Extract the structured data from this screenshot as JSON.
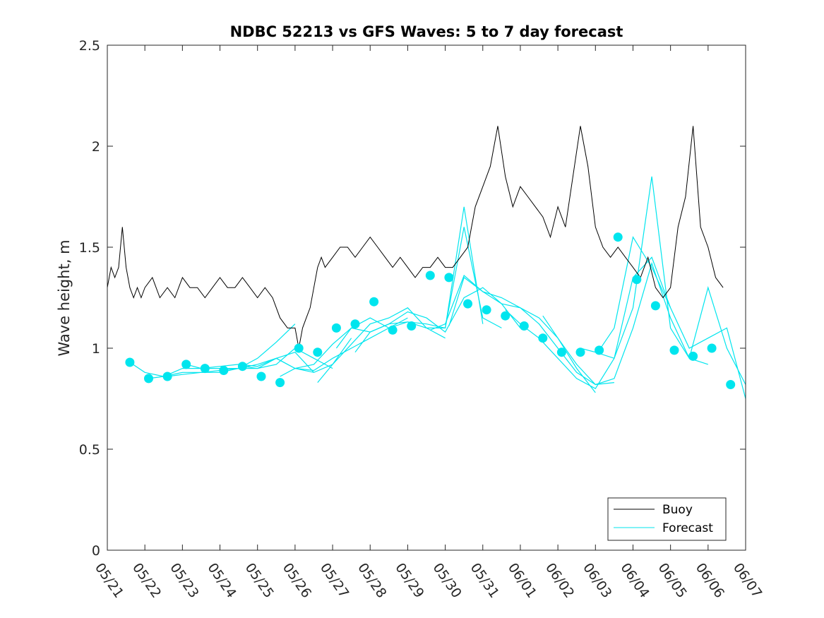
{
  "chart_data": {
    "type": "line",
    "title": "NDBC 52213 vs GFS Waves: 5 to 7 day forecast",
    "ylabel": "Wave height, m",
    "xlabel": "",
    "ylim": [
      0,
      2.5
    ],
    "yticks": [
      "0",
      "0.5",
      "1",
      "1.5",
      "2",
      "2.5"
    ],
    "xlim_days": [
      0,
      17
    ],
    "xticks": [
      "05/21",
      "05/22",
      "05/23",
      "05/24",
      "05/25",
      "05/26",
      "05/27",
      "05/28",
      "05/29",
      "05/30",
      "05/31",
      "06/01",
      "06/02",
      "06/03",
      "06/04",
      "06/05",
      "06/06",
      "06/07"
    ],
    "grid": false,
    "legend": {
      "position": "bottom-right",
      "entries": [
        "Buoy",
        "Forecast"
      ]
    },
    "colors": {
      "buoy": "#000000",
      "forecast": "#00e5ee",
      "axis": "#262626"
    },
    "buoy": {
      "name": "Buoy",
      "x": [
        0.0,
        0.1,
        0.2,
        0.3,
        0.4,
        0.5,
        0.6,
        0.7,
        0.8,
        0.9,
        1.0,
        1.2,
        1.4,
        1.6,
        1.8,
        2.0,
        2.2,
        2.4,
        2.6,
        2.8,
        3.0,
        3.2,
        3.4,
        3.6,
        3.8,
        4.0,
        4.2,
        4.4,
        4.6,
        4.8,
        5.0,
        5.1,
        5.2,
        5.3,
        5.4,
        5.5,
        5.6,
        5.7,
        5.8,
        6.0,
        6.2,
        6.4,
        6.6,
        6.8,
        7.0,
        7.2,
        7.4,
        7.6,
        7.8,
        8.0,
        8.2,
        8.4,
        8.6,
        8.8,
        9.0,
        9.2,
        9.4,
        9.6,
        9.8,
        10.0,
        10.2,
        10.4,
        10.6,
        10.8,
        11.0,
        11.2,
        11.4,
        11.6,
        11.8,
        12.0,
        12.2,
        12.4,
        12.6,
        12.8,
        13.0,
        13.2,
        13.4,
        13.6,
        13.8,
        14.0,
        14.2,
        14.4,
        14.6,
        14.8,
        15.0,
        15.2,
        15.4,
        15.6,
        15.8,
        16.0,
        16.2,
        16.4
      ],
      "y": [
        1.3,
        1.4,
        1.35,
        1.4,
        1.6,
        1.4,
        1.3,
        1.25,
        1.3,
        1.25,
        1.3,
        1.35,
        1.25,
        1.3,
        1.25,
        1.35,
        1.3,
        1.3,
        1.25,
        1.3,
        1.35,
        1.3,
        1.3,
        1.35,
        1.3,
        1.25,
        1.3,
        1.25,
        1.15,
        1.1,
        1.1,
        1.0,
        1.1,
        1.15,
        1.2,
        1.3,
        1.4,
        1.45,
        1.4,
        1.45,
        1.5,
        1.5,
        1.45,
        1.5,
        1.55,
        1.5,
        1.45,
        1.4,
        1.45,
        1.4,
        1.35,
        1.4,
        1.4,
        1.45,
        1.4,
        1.4,
        1.45,
        1.5,
        1.7,
        1.8,
        1.9,
        2.1,
        1.85,
        1.7,
        1.8,
        1.75,
        1.7,
        1.65,
        1.55,
        1.7,
        1.6,
        1.85,
        2.1,
        1.9,
        1.6,
        1.5,
        1.45,
        1.5,
        1.45,
        1.4,
        1.35,
        1.45,
        1.3,
        1.25,
        1.3,
        1.6,
        1.75,
        2.1,
        1.6,
        1.5,
        1.35,
        1.3
      ]
    },
    "forecast_runs": [
      {
        "x": [
          0.6,
          1.0,
          1.5,
          2.0,
          2.5,
          3.0,
          3.5,
          4.0,
          4.5,
          5.0
        ],
        "y": [
          0.93,
          0.88,
          0.86,
          0.88,
          0.88,
          0.89,
          0.9,
          0.95,
          1.03,
          1.12
        ]
      },
      {
        "x": [
          1.1,
          1.5,
          2.0,
          2.5,
          3.0,
          3.5,
          4.0,
          4.5,
          5.0,
          5.5
        ],
        "y": [
          0.85,
          0.86,
          0.9,
          0.9,
          0.91,
          0.92,
          0.91,
          0.95,
          0.98,
          0.88
        ]
      },
      {
        "x": [
          1.6,
          2.0,
          2.5,
          3.0,
          3.5,
          4.0,
          4.5,
          5.0,
          5.5,
          6.0
        ],
        "y": [
          0.86,
          0.87,
          0.88,
          0.88,
          0.9,
          0.9,
          0.92,
          1.0,
          0.95,
          0.9
        ]
      },
      {
        "x": [
          2.1,
          2.5,
          3.0,
          3.5,
          4.0,
          4.5,
          5.0,
          5.5,
          6.0,
          6.5
        ],
        "y": [
          0.92,
          0.9,
          0.9,
          0.9,
          0.92,
          0.95,
          0.9,
          0.88,
          0.92,
          1.05
        ]
      },
      {
        "x": [
          3.6,
          4.0,
          4.5,
          5.0,
          5.5,
          6.0,
          6.5,
          7.0,
          7.5,
          8.0
        ],
        "y": [
          0.91,
          0.9,
          0.95,
          0.9,
          0.89,
          0.95,
          1.0,
          1.05,
          1.1,
          1.15
        ]
      },
      {
        "x": [
          4.6,
          5.0,
          5.5,
          6.0,
          6.5,
          7.0,
          7.5,
          8.0,
          8.5,
          9.0
        ],
        "y": [
          0.86,
          0.9,
          0.92,
          1.02,
          1.1,
          1.08,
          1.12,
          1.13,
          1.1,
          1.05
        ]
      },
      {
        "x": [
          5.6,
          6.0,
          6.5,
          7.0,
          7.5,
          8.0,
          8.5,
          9.0,
          9.5,
          10.0
        ],
        "y": [
          0.83,
          0.92,
          1.02,
          1.12,
          1.15,
          1.2,
          1.1,
          1.1,
          1.7,
          1.12
        ]
      },
      {
        "x": [
          6.1,
          6.5,
          7.0,
          7.5,
          8.0,
          8.5,
          9.0,
          9.5,
          10.0,
          10.5
        ],
        "y": [
          1.0,
          1.1,
          1.15,
          1.1,
          1.13,
          1.12,
          1.1,
          1.6,
          1.15,
          1.1
        ]
      },
      {
        "x": [
          6.6,
          7.0,
          7.5,
          8.0,
          8.5,
          9.0,
          9.5,
          10.0,
          10.5,
          11.0
        ],
        "y": [
          0.98,
          1.08,
          1.12,
          1.18,
          1.15,
          1.08,
          1.25,
          1.3,
          1.22,
          1.1
        ]
      },
      {
        "x": [
          8.6,
          9.0,
          9.5,
          10.0,
          10.5,
          11.0,
          11.5,
          12.0,
          12.5,
          13.0
        ],
        "y": [
          1.09,
          1.12,
          1.36,
          1.28,
          1.22,
          1.2,
          1.15,
          1.05,
          0.9,
          0.78
        ]
      },
      {
        "x": [
          9.1,
          9.5,
          10.0,
          10.5,
          11.0,
          11.5,
          12.0,
          12.5,
          13.0,
          13.5
        ],
        "y": [
          1.11,
          1.35,
          1.28,
          1.25,
          1.2,
          1.12,
          1.0,
          0.88,
          0.82,
          0.83
        ]
      },
      {
        "x": [
          10.6,
          11.0,
          11.5,
          12.0,
          12.5,
          13.0,
          13.5,
          14.0,
          14.5,
          15.0
        ],
        "y": [
          1.19,
          1.12,
          1.05,
          0.95,
          0.85,
          0.8,
          0.95,
          1.35,
          1.45,
          1.2
        ]
      },
      {
        "x": [
          11.6,
          12.0,
          12.5,
          13.0,
          13.5,
          14.0,
          14.5,
          15.0,
          15.5,
          16.0
        ],
        "y": [
          1.16,
          1.05,
          0.92,
          0.82,
          0.85,
          1.1,
          1.42,
          1.15,
          0.95,
          0.92
        ]
      },
      {
        "x": [
          12.6,
          13.0,
          13.5,
          14.0,
          14.5,
          15.0,
          15.5,
          16.0,
          16.5,
          17.0
        ],
        "y": [
          1.0,
          0.98,
          0.95,
          1.2,
          1.85,
          1.1,
          0.95,
          1.3,
          1.0,
          0.82
        ]
      },
      {
        "x": [
          13.1,
          13.5,
          14.0,
          14.5,
          15.0,
          15.5,
          16.0,
          16.5,
          17.0
        ],
        "y": [
          0.99,
          1.1,
          1.55,
          1.4,
          1.2,
          1.0,
          1.05,
          1.1,
          0.75
        ]
      }
    ],
    "forecast_markers": {
      "x": [
        0.6,
        1.1,
        1.6,
        2.1,
        2.6,
        3.1,
        3.6,
        4.1,
        4.6,
        5.1,
        5.6,
        6.1,
        6.6,
        7.1,
        7.6,
        8.1,
        8.6,
        9.1,
        9.6,
        10.1,
        10.6,
        11.1,
        11.6,
        12.1,
        12.6,
        13.1,
        13.6,
        14.1,
        14.6,
        15.1,
        15.6,
        16.1,
        16.6
      ],
      "y": [
        0.93,
        0.85,
        0.86,
        0.92,
        0.9,
        0.89,
        0.91,
        0.86,
        0.83,
        1.0,
        0.98,
        1.1,
        1.12,
        1.23,
        1.09,
        1.11,
        1.36,
        1.35,
        1.22,
        1.19,
        1.16,
        1.11,
        1.05,
        0.98,
        0.98,
        0.99,
        1.55,
        1.34,
        1.21,
        0.99,
        0.96,
        1.0,
        0.82
      ]
    }
  }
}
